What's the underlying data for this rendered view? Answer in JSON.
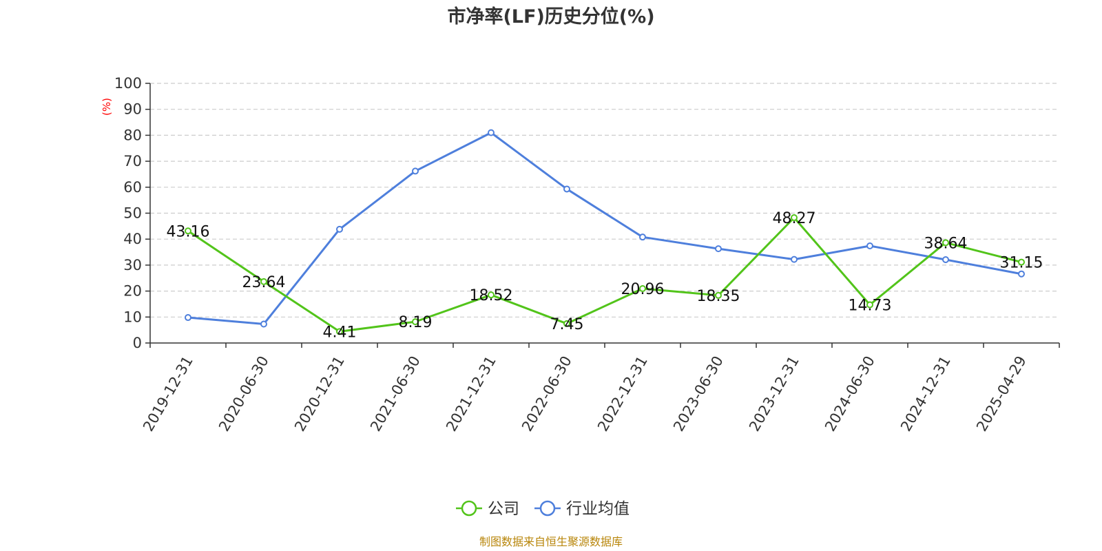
{
  "chart_data": {
    "type": "line",
    "title": "市净率(LF)历史分位(%)",
    "ylabel": "(%)",
    "xlabel": "",
    "ylim": [
      0,
      100
    ],
    "yticks": [
      0,
      10,
      20,
      30,
      40,
      50,
      60,
      70,
      80,
      90,
      100
    ],
    "grid": true,
    "legend_position": "bottom-center",
    "categories": [
      "2019-12-31",
      "2020-06-30",
      "2020-12-31",
      "2021-06-30",
      "2021-12-31",
      "2022-06-30",
      "2022-12-31",
      "2023-06-30",
      "2023-12-31",
      "2024-06-30",
      "2024-12-31",
      "2025-04-29"
    ],
    "series": [
      {
        "name": "公司",
        "color": "#52c41a",
        "values": [
          43.16,
          23.64,
          4.41,
          8.19,
          18.52,
          7.45,
          20.96,
          18.35,
          48.27,
          14.73,
          38.64,
          31.15
        ],
        "labels": [
          "43.16",
          "23.64",
          "4.41",
          "8.19",
          "18.52",
          "7.45",
          "20.96",
          "18.35",
          "48.27",
          "14.73",
          "38.64",
          "31.15"
        ]
      },
      {
        "name": "行业均值",
        "color": "#4e7fdc",
        "values": [
          9.8,
          7.3,
          43.8,
          66.2,
          81.0,
          59.3,
          40.8,
          36.3,
          32.2,
          37.4,
          32.1,
          26.6
        ]
      }
    ]
  },
  "source": "制图数据来自恒生聚源数据库"
}
